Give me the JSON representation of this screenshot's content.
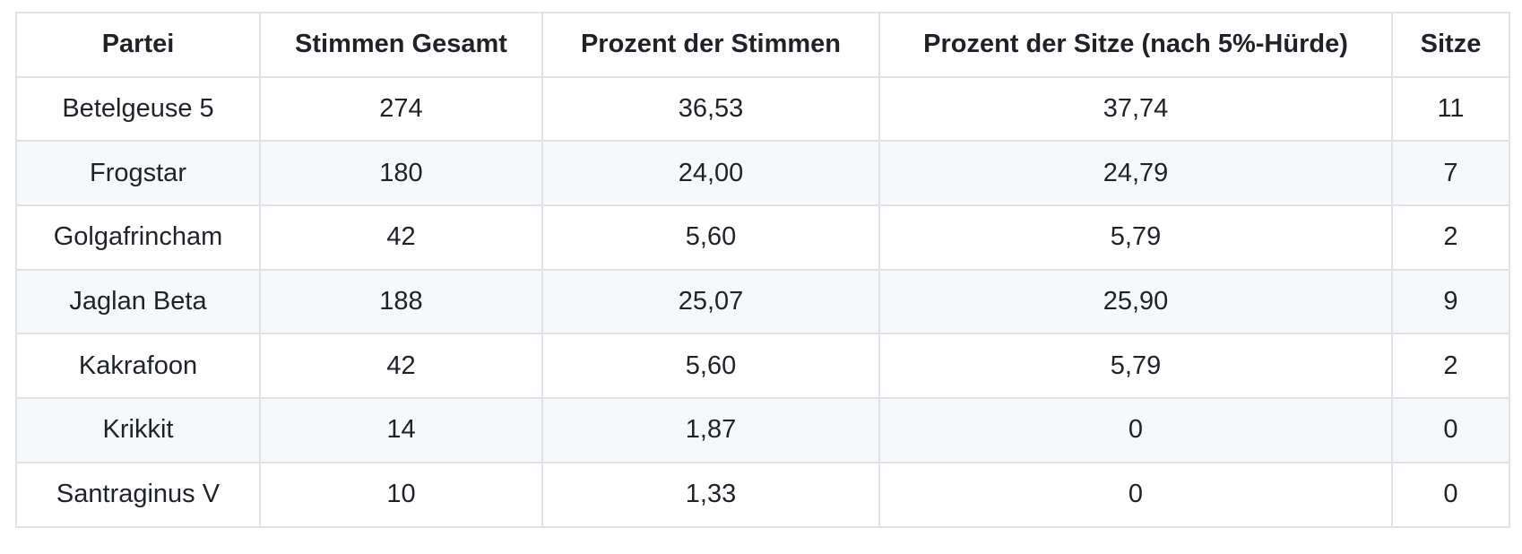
{
  "table": {
    "columns": [
      "Partei",
      "Stimmen Gesamt",
      "Prozent der Stimmen",
      "Prozent der Sitze (nach 5%-Hürde)",
      "Sitze"
    ],
    "rows": [
      [
        "Betelgeuse 5",
        "274",
        "36,53",
        "37,74",
        "11"
      ],
      [
        "Frogstar",
        "180",
        "24,00",
        "24,79",
        "7"
      ],
      [
        "Golgafrincham",
        "42",
        "5,60",
        "5,79",
        "2"
      ],
      [
        "Jaglan Beta",
        "188",
        "25,07",
        "25,90",
        "9"
      ],
      [
        "Kakrafoon",
        "42",
        "5,60",
        "5,79",
        "2"
      ],
      [
        "Krikkit",
        "14",
        "1,87",
        "0",
        "0"
      ],
      [
        "Santraginus V",
        "10",
        "1,33",
        "0",
        "0"
      ]
    ]
  },
  "chart_data": {
    "type": "table",
    "title": "",
    "columns": [
      "Partei",
      "Stimmen Gesamt",
      "Prozent der Stimmen",
      "Prozent der Sitze (nach 5%-Hürde)",
      "Sitze"
    ],
    "categories": [
      "Betelgeuse 5",
      "Frogstar",
      "Golgafrincham",
      "Jaglan Beta",
      "Kakrafoon",
      "Krikkit",
      "Santraginus V"
    ],
    "series": [
      {
        "name": "Stimmen Gesamt",
        "values": [
          274,
          180,
          42,
          188,
          42,
          14,
          10
        ]
      },
      {
        "name": "Prozent der Stimmen",
        "values": [
          36.53,
          24.0,
          5.6,
          25.07,
          5.6,
          1.87,
          1.33
        ]
      },
      {
        "name": "Prozent der Sitze (nach 5%-Hürde)",
        "values": [
          37.74,
          24.79,
          5.79,
          25.9,
          5.79,
          0,
          0
        ]
      },
      {
        "name": "Sitze",
        "values": [
          11,
          7,
          2,
          9,
          2,
          0,
          0
        ]
      }
    ],
    "number_format": "de-DE (decimal comma)"
  },
  "colors": {
    "background": "#ffffff",
    "stripe_row": "#f6f8fa",
    "border": "#dfe2e6",
    "text": "#1f2328"
  }
}
